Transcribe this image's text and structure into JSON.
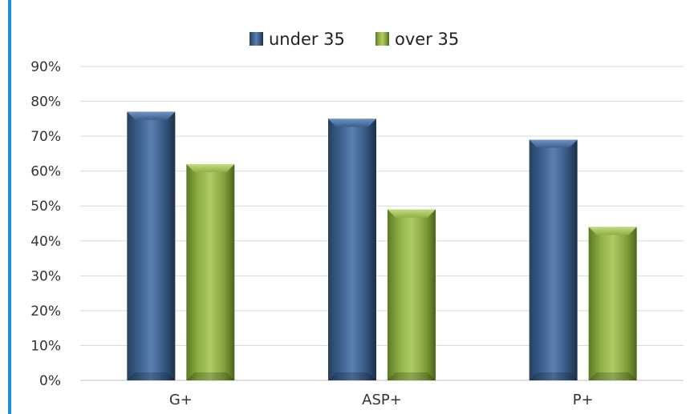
{
  "chart_data": {
    "type": "bar",
    "title": "",
    "xlabel": "",
    "ylabel": "",
    "categories": [
      "G+",
      "ASP+",
      "P+"
    ],
    "series": [
      {
        "name": "under 35",
        "values": [
          77,
          75,
          69
        ],
        "color": "#3b5f8e"
      },
      {
        "name": "over 35",
        "values": [
          62,
          49,
          44
        ],
        "color": "#8fb046"
      }
    ],
    "ylim": [
      0,
      90
    ],
    "yticks": [
      0,
      10,
      20,
      30,
      40,
      50,
      60,
      70,
      80,
      90
    ],
    "ytick_labels": [
      "0%",
      "10%",
      "20%",
      "30%",
      "40%",
      "50%",
      "60%",
      "70%",
      "80%",
      "90%"
    ],
    "grid": true,
    "legend_position": "top-center"
  },
  "colors": {
    "left_accent": "#1a8fd1",
    "gridline": "#d9d9d9",
    "axis": "#bfbfbf"
  }
}
